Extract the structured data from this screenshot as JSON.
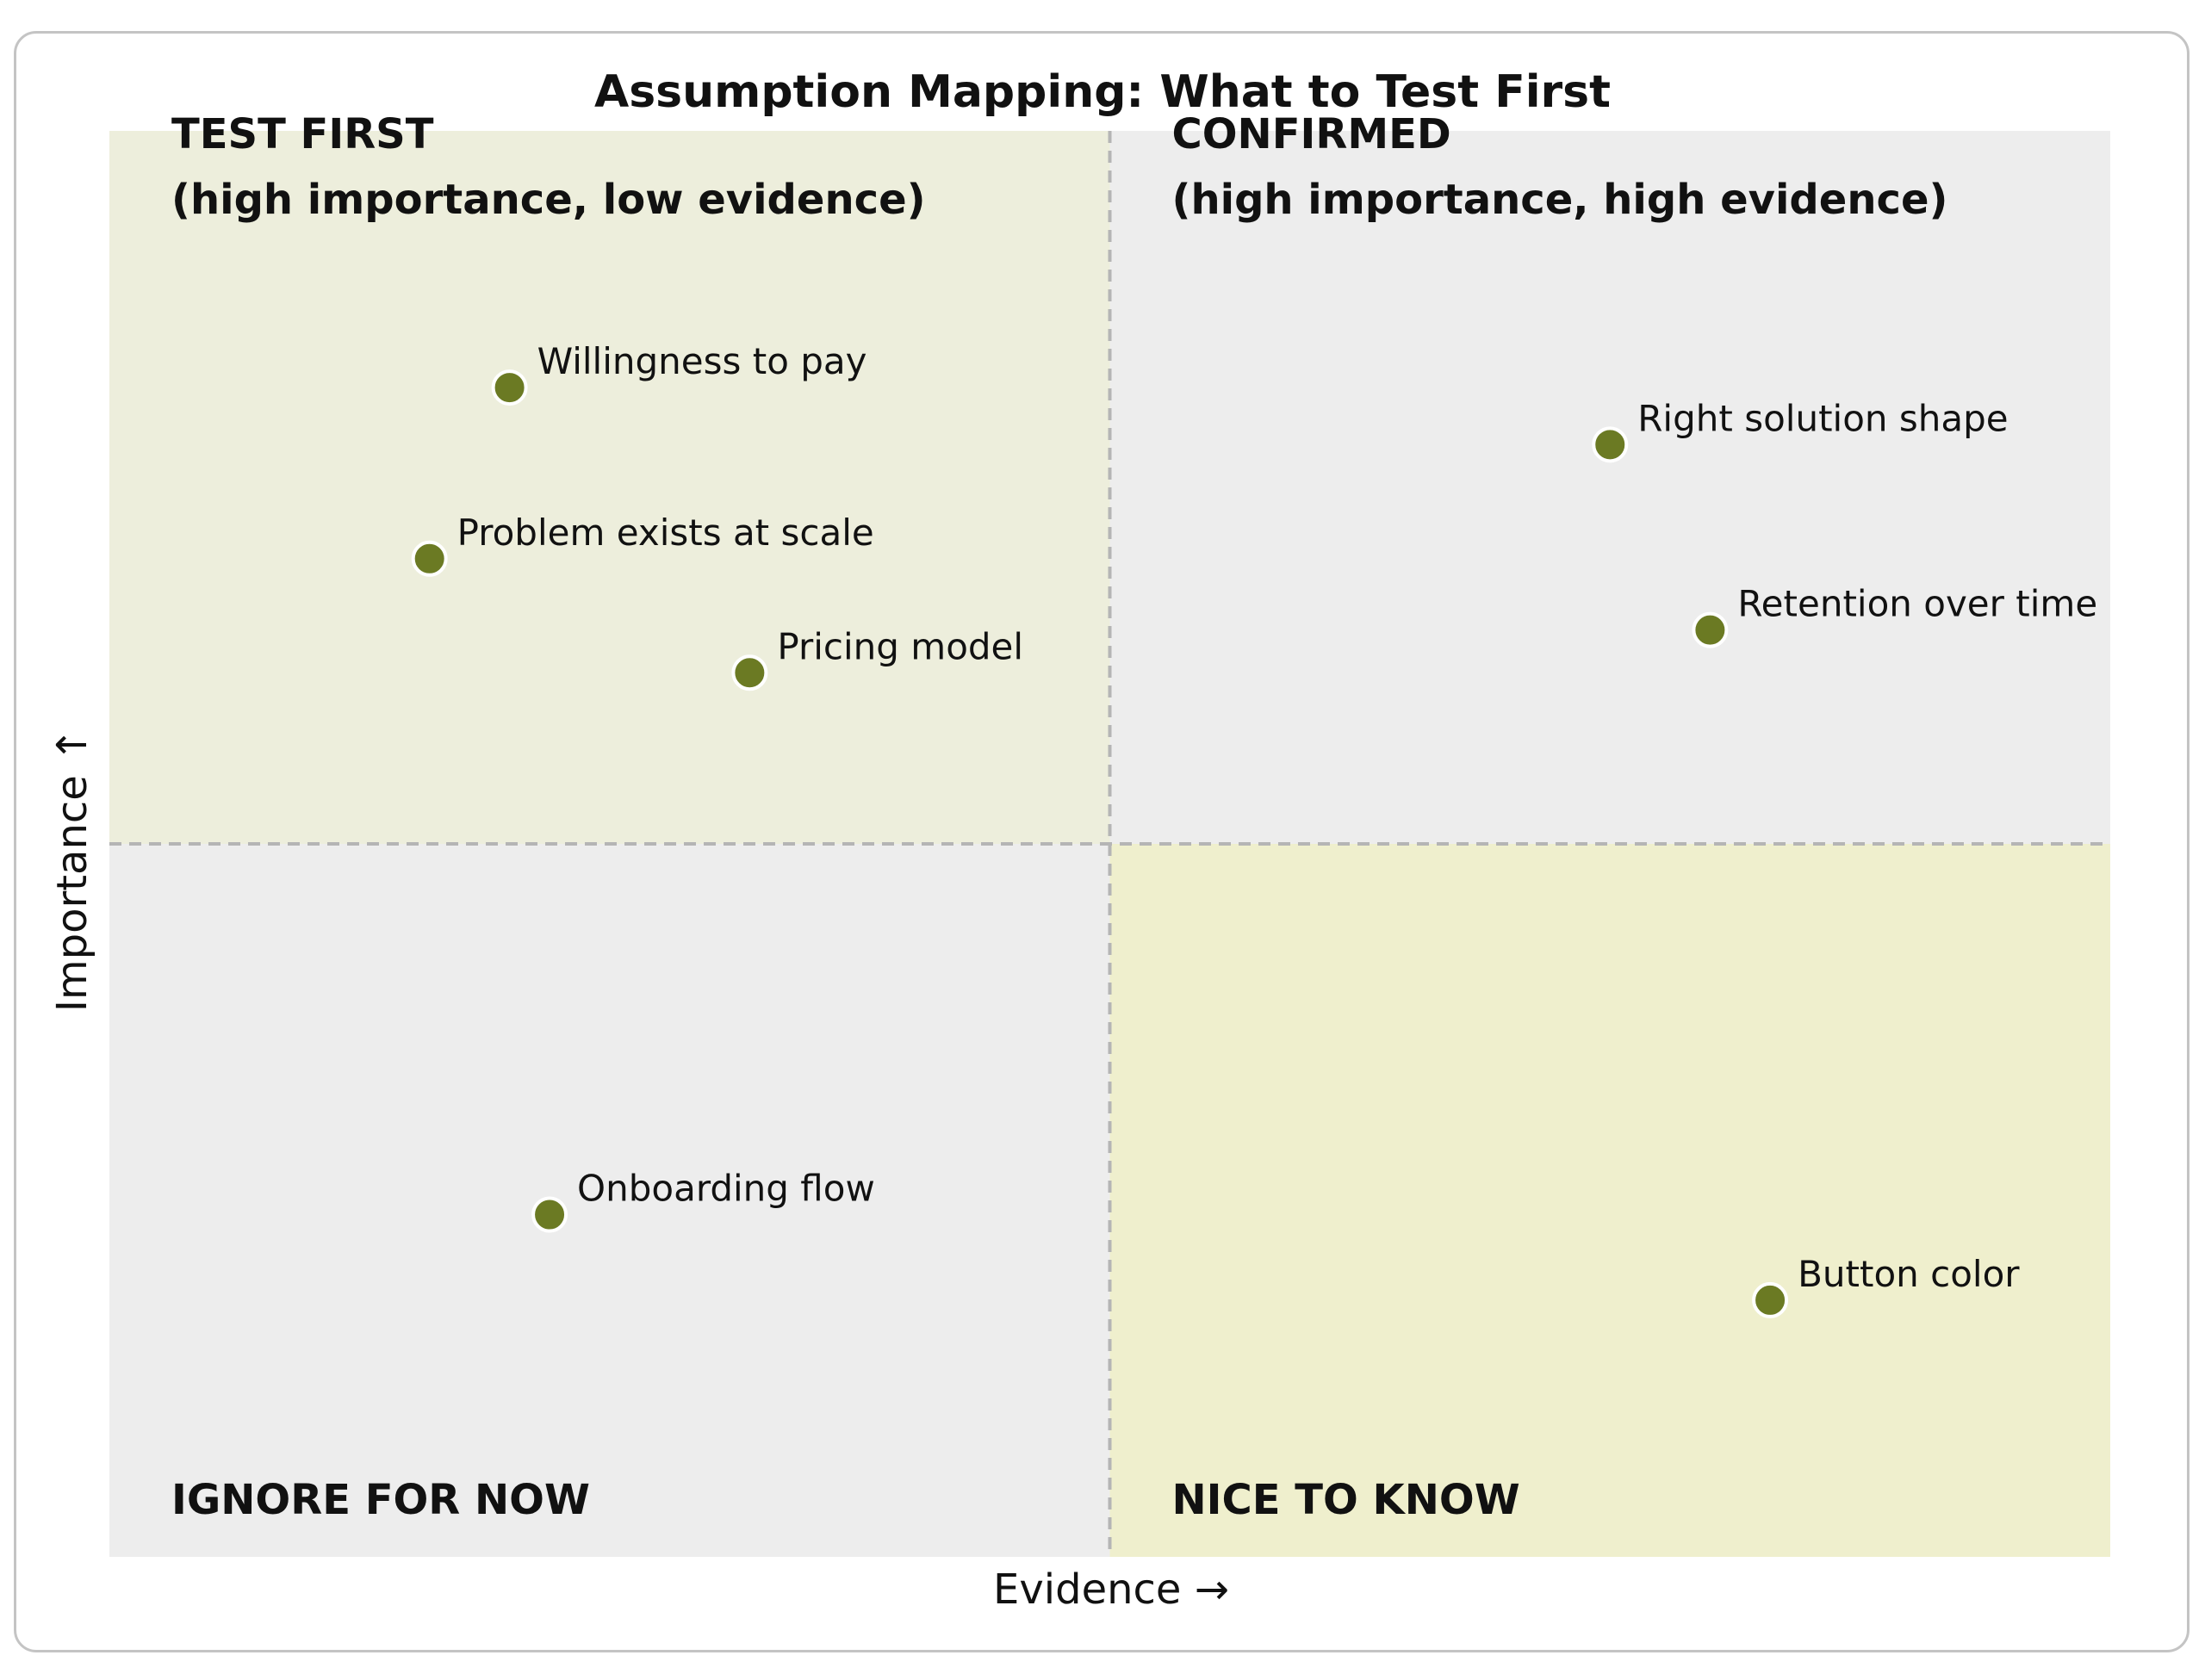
{
  "chart_data": {
    "type": "scatter",
    "title": "Assumption Mapping: What to Test First",
    "xlabel": "Evidence →",
    "ylabel": "Importance ↑",
    "xlim": [
      0,
      10
    ],
    "ylim": [
      0,
      10
    ],
    "grid": false,
    "dividers": {
      "x": 5,
      "y": 5
    },
    "quadrants": [
      {
        "id": "top-left",
        "lines": [
          "TEST FIRST",
          "(high importance, low evidence)"
        ],
        "fill": "#edeedc"
      },
      {
        "id": "top-right",
        "lines": [
          "CONFIRMED",
          "(high importance, high evidence)"
        ],
        "fill": "#ededed"
      },
      {
        "id": "bottom-left",
        "lines": [
          "IGNORE FOR NOW"
        ],
        "fill": "#ededed"
      },
      {
        "id": "bottom-right",
        "lines": [
          "NICE TO KNOW"
        ],
        "fill": "#efefcd"
      }
    ],
    "points": [
      {
        "label": "Willingness to pay",
        "x": 2.0,
        "y": 8.2
      },
      {
        "label": "Problem exists at scale",
        "x": 1.6,
        "y": 7.0
      },
      {
        "label": "Pricing model",
        "x": 3.2,
        "y": 6.2
      },
      {
        "label": "Right solution shape",
        "x": 7.5,
        "y": 7.8
      },
      {
        "label": "Retention over time",
        "x": 8.0,
        "y": 6.5
      },
      {
        "label": "Onboarding flow",
        "x": 2.2,
        "y": 2.4
      },
      {
        "label": "Button color",
        "x": 8.3,
        "y": 1.8
      }
    ],
    "colors": {
      "point": "#6b7a23",
      "point_edge": "#ffffff",
      "divider": "#b5b5b5",
      "text": "#111111"
    }
  }
}
